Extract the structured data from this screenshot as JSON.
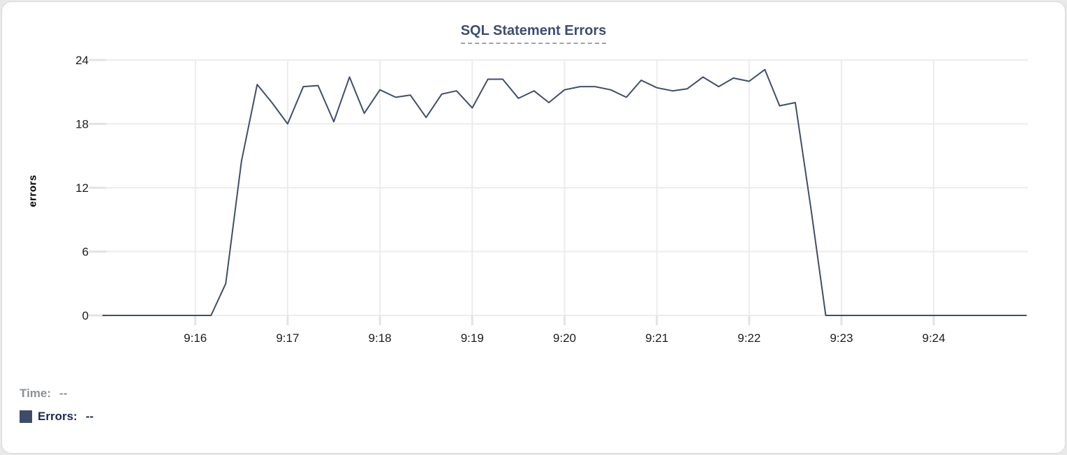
{
  "chart_data": {
    "type": "line",
    "title": "SQL Statement Errors",
    "ylabel": "errors",
    "xlabel": "",
    "x_tick_labels": [
      "9:16",
      "9:17",
      "9:18",
      "9:19",
      "9:20",
      "9:21",
      "9:22",
      "9:23",
      "9:24"
    ],
    "x_tick_values": [
      16,
      17,
      18,
      19,
      20,
      21,
      22,
      23,
      24
    ],
    "y_ticks": [
      0,
      6,
      12,
      18,
      24
    ],
    "xlim": [
      14.89,
      25.02
    ],
    "ylim": [
      0,
      24
    ],
    "grid": true,
    "x_unit": "minutes after 9:00",
    "legend_position": "bottom-left",
    "series": [
      {
        "name": "Errors",
        "color": "#3f4e6c",
        "points": [
          [
            15.0,
            0
          ],
          [
            15.17,
            0
          ],
          [
            15.33,
            0
          ],
          [
            15.5,
            0
          ],
          [
            15.67,
            0
          ],
          [
            15.83,
            0
          ],
          [
            16.0,
            0
          ],
          [
            16.17,
            0
          ],
          [
            16.33,
            3
          ],
          [
            16.5,
            14.5
          ],
          [
            16.67,
            21.7
          ],
          [
            16.83,
            20
          ],
          [
            17.0,
            18
          ],
          [
            17.17,
            21.5
          ],
          [
            17.33,
            21.6
          ],
          [
            17.5,
            18.2
          ],
          [
            17.67,
            22.4
          ],
          [
            17.83,
            19
          ],
          [
            18.0,
            21.2
          ],
          [
            18.17,
            20.5
          ],
          [
            18.33,
            20.7
          ],
          [
            18.5,
            18.6
          ],
          [
            18.67,
            20.8
          ],
          [
            18.83,
            21.1
          ],
          [
            19.0,
            19.5
          ],
          [
            19.17,
            22.2
          ],
          [
            19.33,
            22.2
          ],
          [
            19.5,
            20.4
          ],
          [
            19.67,
            21.1
          ],
          [
            19.83,
            20.0
          ],
          [
            20.0,
            21.2
          ],
          [
            20.17,
            21.5
          ],
          [
            20.33,
            21.5
          ],
          [
            20.5,
            21.2
          ],
          [
            20.67,
            20.5
          ],
          [
            20.83,
            22.1
          ],
          [
            21.0,
            21.4
          ],
          [
            21.17,
            21.1
          ],
          [
            21.33,
            21.3
          ],
          [
            21.5,
            22.4
          ],
          [
            21.67,
            21.5
          ],
          [
            21.83,
            22.3
          ],
          [
            22.0,
            22.0
          ],
          [
            22.17,
            23.1
          ],
          [
            22.33,
            19.7
          ],
          [
            22.5,
            20.0
          ],
          [
            22.67,
            10
          ],
          [
            22.83,
            0
          ],
          [
            23.0,
            0
          ],
          [
            23.17,
            0
          ],
          [
            23.33,
            0
          ],
          [
            23.5,
            0
          ],
          [
            23.67,
            0
          ],
          [
            23.83,
            0
          ],
          [
            24.0,
            0
          ],
          [
            24.17,
            0
          ],
          [
            24.33,
            0
          ],
          [
            24.5,
            0
          ],
          [
            24.67,
            0
          ],
          [
            24.83,
            0
          ],
          [
            25.0,
            0
          ]
        ]
      }
    ]
  },
  "readout": {
    "time_label": "Time:",
    "time_value": "--",
    "errors_label": "Errors:",
    "errors_value": "--",
    "swatch_color": "#3d4c68"
  },
  "colors": {
    "grid": "#ececec",
    "tick_stub": "#e3e3e3",
    "tick_label": "#1c1c1c",
    "title": "#3b4e73",
    "title_underline": "#9aa4b8"
  }
}
